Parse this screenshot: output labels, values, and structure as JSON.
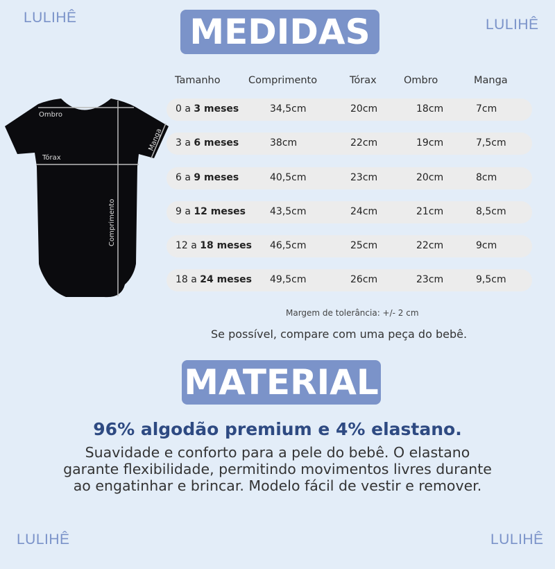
{
  "brand": {
    "logo_text": "LULIHÊ",
    "accent_color": "#7b93c9",
    "heading_color": "#2e4a82"
  },
  "measures": {
    "title": "MEDIDAS",
    "diagram_labels": {
      "ombro": "Ombro",
      "torax": "Tórax",
      "manga": "Manga",
      "comprimento": "Comprimento"
    },
    "columns": [
      "Tamanho",
      "Comprimento",
      "Tórax",
      "Ombro",
      "Manga"
    ],
    "rows": [
      {
        "size_from": "0 a ",
        "size_to": "3 meses",
        "comprimento": "34,5cm",
        "torax": "20cm",
        "ombro": "18cm",
        "manga": "7cm"
      },
      {
        "size_from": "3 a ",
        "size_to": "6 meses",
        "comprimento": "38cm",
        "torax": "22cm",
        "ombro": "19cm",
        "manga": "7,5cm"
      },
      {
        "size_from": "6 a ",
        "size_to": "9 meses",
        "comprimento": "40,5cm",
        "torax": "23cm",
        "ombro": "20cm",
        "manga": "8cm"
      },
      {
        "size_from": "9 a ",
        "size_to": "12 meses",
        "comprimento": "43,5cm",
        "torax": "24cm",
        "ombro": "21cm",
        "manga": "8,5cm"
      },
      {
        "size_from": "12 a ",
        "size_to": "18 meses",
        "comprimento": "46,5cm",
        "torax": "25cm",
        "ombro": "22cm",
        "manga": "9cm"
      },
      {
        "size_from": "18 a ",
        "size_to": "24 meses",
        "comprimento": "49,5cm",
        "torax": "26cm",
        "ombro": "23cm",
        "manga": "9,5cm"
      }
    ],
    "tolerance_note": "Margem de tolerância: +/- 2 cm",
    "compare_tip": "Se possível, compare com uma peça do bebê."
  },
  "material": {
    "title": "MATERIAL",
    "headline": "96% algodão premium e 4% elastano.",
    "description_lines": [
      "Suavidade e conforto para a pele do bebê. O elastano",
      "garante flexibilidade, permitindo movimentos livres durante",
      "ao engatinhar e brincar. Modelo fácil de vestir e remover."
    ]
  }
}
